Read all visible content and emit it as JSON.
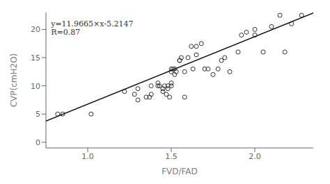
{
  "chart_data": {
    "type": "scatter",
    "xlabel": "FVD/FAD",
    "ylabel": "CVP(cmH2O)",
    "xlim": [
      0.75,
      2.35
    ],
    "ylim": [
      -1,
      23
    ],
    "xticks": [
      {
        "value": 1.0,
        "label": "1.0"
      },
      {
        "value": 1.5,
        "label": "1.5"
      },
      {
        "value": 2.0,
        "label": "2.0"
      }
    ],
    "yticks": [
      0,
      5,
      10,
      15,
      20
    ],
    "annotations": [
      {
        "text": "y=11.9665×x-5.2147",
        "x": 0.78,
        "y": 21.5
      },
      {
        "text": "R=0.87",
        "x": 0.78,
        "y": 20.0
      }
    ],
    "series": [
      {
        "type": "scatter",
        "marker": "open circle",
        "color": "#333333",
        "x": [
          0.82,
          0.85,
          1.02,
          1.22,
          1.28,
          1.3,
          1.3,
          1.35,
          1.37,
          1.38,
          1.38,
          1.42,
          1.42,
          1.43,
          1.45,
          1.45,
          1.46,
          1.47,
          1.48,
          1.48,
          1.49,
          1.5,
          1.5,
          1.5,
          1.5,
          1.51,
          1.52,
          1.52,
          1.53,
          1.55,
          1.55,
          1.56,
          1.58,
          1.58,
          1.6,
          1.62,
          1.63,
          1.65,
          1.65,
          1.68,
          1.7,
          1.72,
          1.75,
          1.78,
          1.8,
          1.82,
          1.85,
          1.9,
          1.92,
          1.95,
          2.0,
          2.0,
          2.05,
          2.1,
          2.15,
          2.18,
          2.22,
          2.28
        ],
        "values": [
          5.0,
          5.0,
          5.0,
          9.0,
          8.5,
          9.5,
          7.5,
          8.0,
          8.0,
          8.5,
          10.0,
          10.0,
          10.5,
          10.0,
          9.0,
          9.5,
          10.0,
          8.5,
          9.5,
          10.0,
          8.0,
          10.5,
          10.0,
          13.0,
          12.5,
          13.0,
          12.0,
          13.0,
          12.5,
          14.5,
          14.5,
          15.0,
          12.5,
          8.0,
          15.0,
          17.0,
          13.0,
          15.5,
          17.0,
          17.5,
          13.0,
          13.0,
          12.0,
          13.0,
          14.5,
          15.0,
          12.5,
          16.0,
          19.0,
          19.5,
          20.0,
          19.0,
          16.0,
          20.5,
          22.5,
          16.0,
          21.0,
          22.5
        ]
      },
      {
        "type": "line",
        "color": "#111111",
        "x": [
          0.75,
          2.35
        ],
        "values": [
          3.760175,
          22.906575
        ]
      }
    ]
  }
}
